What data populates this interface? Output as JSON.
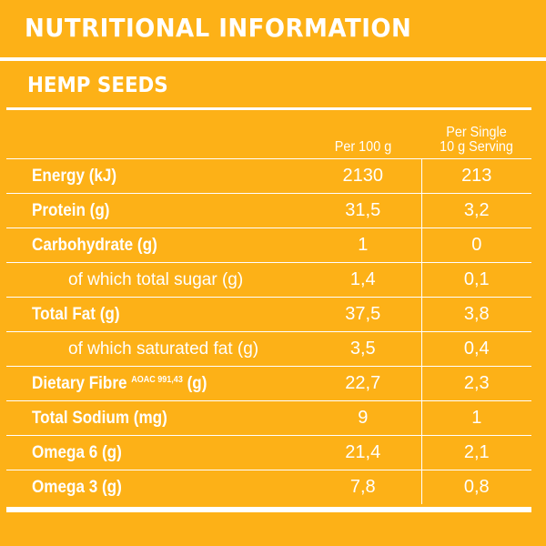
{
  "title": "NUTRITIONAL INFORMATION",
  "product": "HEMP SEEDS",
  "columns": {
    "per_100g": "Per 100 g",
    "per_serving_line1": "Per Single",
    "per_serving_line2": "10 g Serving"
  },
  "rows": [
    {
      "label": "Energy (kJ)",
      "per_100g": "2130",
      "per_serving": "213",
      "indent": false
    },
    {
      "label": "Protein (g)",
      "per_100g": "31,5",
      "per_serving": "3,2",
      "indent": false
    },
    {
      "label": "Carbohydrate (g)",
      "per_100g": "1",
      "per_serving": "0",
      "indent": false
    },
    {
      "label": "of which total sugar (g)",
      "per_100g": "1,4",
      "per_serving": "0,1",
      "indent": true
    },
    {
      "label": "Total Fat (g)",
      "per_100g": "37,5",
      "per_serving": "3,8",
      "indent": false
    },
    {
      "label": "of which saturated fat (g)",
      "per_100g": "3,5",
      "per_serving": "0,4",
      "indent": true
    },
    {
      "label": "Dietary Fibre",
      "superscript": "AOAC 991,43",
      "label_suffix": "(g)",
      "per_100g": "22,7",
      "per_serving": "2,3",
      "indent": false
    },
    {
      "label": "Total Sodium (mg)",
      "per_100g": "9",
      "per_serving": "1",
      "indent": false
    },
    {
      "label": "Omega 6 (g)",
      "per_100g": "21,4",
      "per_serving": "2,1",
      "indent": false
    },
    {
      "label": "Omega 3 (g)",
      "per_100g": "7,8",
      "per_serving": "0,8",
      "indent": false
    }
  ]
}
